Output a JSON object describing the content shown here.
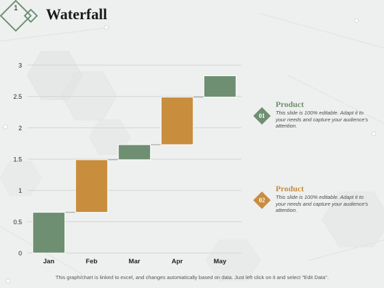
{
  "slide": {
    "number": "1",
    "title": "Waterfall"
  },
  "chart_data": {
    "type": "bar",
    "subtype": "waterfall",
    "categories": [
      "Jan",
      "Feb",
      "Mar",
      "Apr",
      "May"
    ],
    "ranges": [
      [
        0,
        0.65
      ],
      [
        0.65,
        1.49
      ],
      [
        1.49,
        1.73
      ],
      [
        1.73,
        2.49
      ],
      [
        2.49,
        2.83
      ]
    ],
    "bar_colors": [
      "#6f8f72",
      "#c98d3e",
      "#6f8f72",
      "#c98d3e",
      "#6f8f72"
    ],
    "yticks": [
      0,
      0.5,
      1,
      1.5,
      2,
      2.5,
      3
    ],
    "ytick_labels": [
      "0",
      "0.5",
      "1",
      "1.5",
      "2",
      "2.5",
      "3"
    ],
    "ylim": [
      0,
      3
    ],
    "grid": true,
    "connectors": true
  },
  "legend": [
    {
      "num": "01",
      "title": "Product",
      "color": "#6f8f72",
      "title_color": "#6f8f72",
      "desc": "This slide is 100% editable. Adapt it to your needs and capture your audience's attention."
    },
    {
      "num": "02",
      "title": "Product",
      "color": "#c98d3e",
      "title_color": "#c98d3e",
      "desc": "This slide is 100% editable. Adapt it to your needs and capture your audience's attention."
    }
  ],
  "footer": "This graph/chart is linked to excel, and changes automatically based on data. Just left click on it and select \"Edit Data\"."
}
